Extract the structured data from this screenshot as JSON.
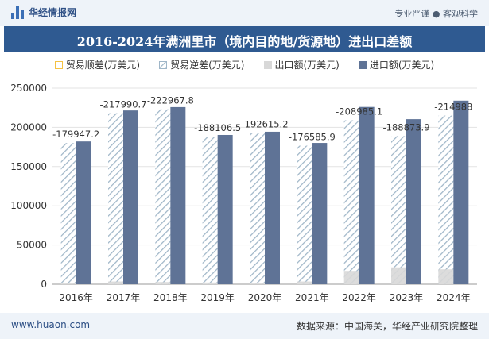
{
  "header": {
    "brand": "华经情报网",
    "tagline": "专业严谨 ● 客观科学"
  },
  "footer": {
    "website": "www.huaon.com",
    "source": "数据来源：中国海关，华经产业研究院整理"
  },
  "colors": {
    "surplus": "#f5c242",
    "deficit": "#b8ccd9",
    "export": "#d8d8d8",
    "import": "#5f7396"
  },
  "chart_data": {
    "type": "bar",
    "title": "2016-2024年满洲里市（境内目的地/货源地）进出口差额",
    "categories": [
      "2016年",
      "2017年",
      "2018年",
      "2019年",
      "2020年",
      "2021年",
      "2022年",
      "2023年",
      "2024年"
    ],
    "series": [
      {
        "name": "贸易顺差(万美元)",
        "values": [
          0,
          0,
          0,
          0,
          0,
          0,
          0,
          0,
          0
        ]
      },
      {
        "name": "贸易逆差(万美元)",
        "values": [
          -179947.2,
          -217990.7,
          -222967.8,
          -188106.5,
          -192615.2,
          -176585.9,
          -208985.1,
          -188873.9,
          -214988
        ]
      },
      {
        "name": "出口额(万美元)",
        "values": [
          2000,
          3500,
          2800,
          2200,
          1800,
          3500,
          17000,
          21500,
          19000
        ]
      },
      {
        "name": "进口额(万美元)",
        "values": [
          182000,
          221500,
          225800,
          190300,
          194400,
          180100,
          226000,
          210400,
          234000
        ]
      }
    ],
    "data_labels": [
      "-179947.2",
      "-217990.7",
      "-222967.8",
      "-188106.5",
      "-192615.2",
      "-176585.9",
      "-208985.1",
      "-188873.9",
      "-214988"
    ],
    "yticks": [
      "0",
      "50000",
      "100000",
      "150000",
      "200000",
      "250000"
    ],
    "ylim": [
      0,
      250000
    ],
    "grid": true,
    "legend": "top"
  }
}
